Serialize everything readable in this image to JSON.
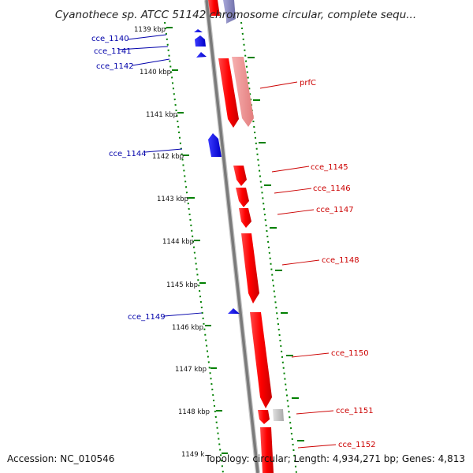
{
  "title": "Cyanothece sp. ATCC 51142 chromosome circular, complete sequ...",
  "colors": {
    "forward_gene": "#ff0000",
    "reverse_gene": "#0000ff",
    "pseudo_gene": "#bbbbbb",
    "backbone": "#808080",
    "tick": "#008000"
  },
  "kbp_ticks": [
    "1139 kbp",
    "1140 kbp",
    "1141 kbp",
    "1142 kbp",
    "1143 kbp",
    "1144 kbp",
    "1145 kbp",
    "1146 kbp",
    "1147 kbp",
    "1148 kbp",
    "1149 k"
  ],
  "gene_labels": {
    "left": [
      "cce_1140",
      "cce_1141",
      "cce_1142",
      "cce_1144",
      "cce_1149"
    ],
    "right": [
      "prfC",
      "cce_1145",
      "cce_1146",
      "cce_1147",
      "cce_1148",
      "cce_1150",
      "cce_1151",
      "cce_1152"
    ]
  },
  "footer": {
    "accession": "Accession: NC_010546",
    "summary": "Topology: circular; Length: 4,934,271 bp; Genes: 4,813"
  }
}
